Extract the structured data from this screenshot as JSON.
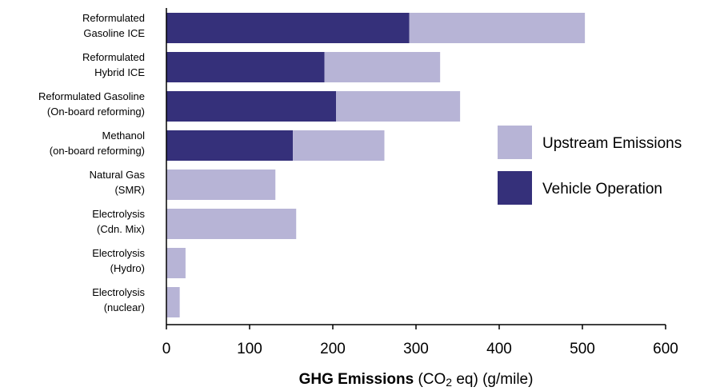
{
  "chart_data": {
    "type": "bar",
    "orientation": "horizontal",
    "stacked": true,
    "categories": [
      [
        "Reformulated",
        "Gasoline ICE"
      ],
      [
        "Reformulated",
        "Hybrid ICE"
      ],
      [
        "Reformulated Gasoline",
        "(On-board reforming)"
      ],
      [
        "Methanol",
        "(on-board reforming)"
      ],
      [
        "Natural Gas",
        "(SMR)"
      ],
      [
        "Electrolysis",
        "(Cdn. Mix)"
      ],
      [
        "Electrolysis",
        "(Hydro)"
      ],
      [
        "Electrolysis",
        "(nuclear)"
      ]
    ],
    "series": [
      {
        "name": "Vehicle Operation",
        "color": "#35307a",
        "values": [
          292,
          190,
          204,
          152,
          0,
          0,
          0,
          0
        ]
      },
      {
        "name": "Upstream Emissions",
        "color": "#b7b4d6",
        "values": [
          211,
          139,
          149,
          110,
          131,
          156,
          23,
          16
        ]
      }
    ],
    "xlim": [
      0,
      600
    ],
    "xticks": [
      "0",
      "100",
      "200",
      "300",
      "400",
      "500",
      "600"
    ],
    "xlabel_bold": "GHG Emissions",
    "xlabel_rest_1": " (CO",
    "xlabel_sub": "2",
    "xlabel_rest_2": " eq) (g/mile)",
    "legend": [
      {
        "label": "Upstream Emissions",
        "color": "#b7b4d6"
      },
      {
        "label": "Vehicle Operation",
        "color": "#35307a"
      }
    ],
    "legend_position": "right",
    "grid": false
  }
}
